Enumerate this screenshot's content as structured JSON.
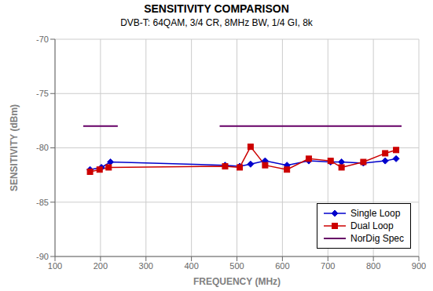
{
  "chart_data": {
    "type": "line",
    "title": "SENSITIVITY COMPARISON",
    "subtitle": "DVB-T: 64QAM, 3/4 CR, 8MHz BW, 1/4 GI, 8k",
    "xlabel": "FREQUENCY (MHz)",
    "ylabel": "SENSITIVITY (dBm)",
    "xlim": [
      100,
      900
    ],
    "ylim": [
      -90,
      -70
    ],
    "xticks": [
      100,
      200,
      300,
      400,
      500,
      600,
      700,
      800,
      900
    ],
    "yticks": [
      -90,
      -85,
      -80,
      -75,
      -70
    ],
    "grid": true,
    "legend": "lower right",
    "series": [
      {
        "name": "Single Loop",
        "color": "#0000cc",
        "marker": "diamond",
        "x": [
          177,
          202,
          222,
          474,
          506,
          530,
          562,
          610,
          658,
          706,
          730,
          778,
          826,
          850
        ],
        "values": [
          -82.0,
          -81.8,
          -81.3,
          -81.6,
          -81.7,
          -81.5,
          -81.2,
          -81.6,
          -81.2,
          -81.3,
          -81.3,
          -81.4,
          -81.2,
          -81.0
        ]
      },
      {
        "name": "Dual Loop",
        "color": "#cc0000",
        "marker": "square",
        "x": [
          177,
          198,
          218,
          474,
          506,
          530,
          562,
          610,
          658,
          706,
          730,
          778,
          826,
          850
        ],
        "values": [
          -82.2,
          -82.0,
          -81.8,
          -81.7,
          -81.8,
          -79.9,
          -81.6,
          -82.0,
          -81.0,
          -81.2,
          -81.8,
          -81.3,
          -80.5,
          -80.2
        ]
      },
      {
        "name": "NorDig Spec",
        "color": "#660066",
        "x": [
          162,
          238,
          null,
          462,
          862
        ],
        "values": [
          -78.0,
          -78.0,
          null,
          -78.0,
          -78.0
        ]
      }
    ]
  }
}
